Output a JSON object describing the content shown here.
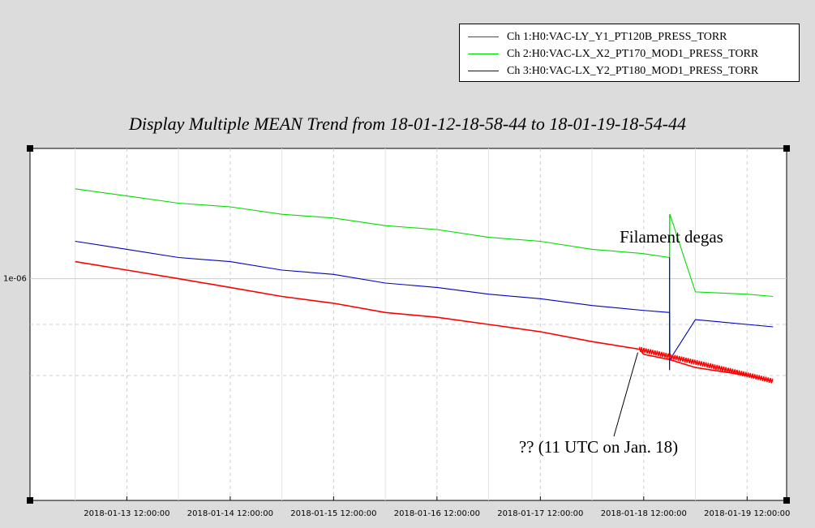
{
  "legend": {
    "items": [
      {
        "label": "Ch 1:H0:VAC-LY_Y1_PT120B_PRESS_TORR",
        "color": "#ff0000"
      },
      {
        "label": "Ch 2:H0:VAC-LX_X2_PT170_MOD1_PRESS_TORR",
        "color": "#00dd00"
      },
      {
        "label": "Ch 3:H0:VAC-LX_Y2_PT180_MOD1_PRESS_TORR",
        "color": "#0000c0"
      }
    ]
  },
  "chart_data": {
    "type": "line",
    "title": "Display Multiple MEAN Trend from 18-01-12-18-58-44 to 18-01-19-18-54-44",
    "xlabel": "",
    "ylabel": "",
    "xlim": [
      "2018-01-12 18:58:44",
      "2018-01-19 18:54:44"
    ],
    "ylim": [
      6e-07,
      1.35e-06
    ],
    "yscale": "log",
    "grid": true,
    "legend_position": "top-right",
    "x_tick_labels": [
      "2018-01-13 12:00:00",
      "2018-01-14 12:00:00",
      "2018-01-15 12:00:00",
      "2018-01-16 12:00:00",
      "2018-01-17 12:00:00",
      "2018-01-18 12:00:00",
      "2018-01-19 12:00:00"
    ],
    "y_tick_labels": [
      "1e-06"
    ],
    "series": [
      {
        "name": "Ch 1:H0:VAC-LY_Y1_PT120B_PRESS_TORR",
        "color": "#ff0000",
        "x": [
          "2018-01-13 00:00",
          "2018-01-13 12:00",
          "2018-01-14 00:00",
          "2018-01-14 12:00",
          "2018-01-15 00:00",
          "2018-01-15 12:00",
          "2018-01-16 00:00",
          "2018-01-16 12:00",
          "2018-01-17 00:00",
          "2018-01-17 12:00",
          "2018-01-18 00:00",
          "2018-01-18 11:00",
          "2018-01-18 12:00",
          "2018-01-18 18:00",
          "2018-01-19 00:00",
          "2018-01-19 12:00",
          "2018-01-19 18:00"
        ],
        "values": [
          1.04e-06,
          1.02e-06,
          1e-06,
          9.8e-07,
          9.6e-07,
          9.45e-07,
          9.25e-07,
          9.15e-07,
          9e-07,
          8.85e-07,
          8.65e-07,
          8.5e-07,
          8.4e-07,
          8.3e-07,
          8.15e-07,
          8e-07,
          7.9e-07
        ]
      },
      {
        "name": "Ch 2:H0:VAC-LX_X2_PT170_MOD1_PRESS_TORR",
        "color": "#00dd00",
        "x": [
          "2018-01-13 00:00",
          "2018-01-13 12:00",
          "2018-01-14 00:00",
          "2018-01-14 12:00",
          "2018-01-15 00:00",
          "2018-01-15 12:00",
          "2018-01-16 00:00",
          "2018-01-16 12:00",
          "2018-01-17 00:00",
          "2018-01-17 12:00",
          "2018-01-18 00:00",
          "2018-01-18 11:30",
          "2018-01-18 18:00",
          "2018-01-18 18:05",
          "2018-01-19 00:00",
          "2018-01-19 12:00",
          "2018-01-19 18:00"
        ],
        "values": [
          1.23e-06,
          1.21e-06,
          1.19e-06,
          1.18e-06,
          1.16e-06,
          1.15e-06,
          1.13e-06,
          1.12e-06,
          1.1e-06,
          1.09e-06,
          1.07e-06,
          1.06e-06,
          1.05e-06,
          1.16e-06,
          9.7e-07,
          9.65e-07,
          9.6e-07
        ]
      },
      {
        "name": "Ch 3:H0:VAC-LX_Y2_PT180_MOD1_PRESS_TORR",
        "color": "#0000c0",
        "x": [
          "2018-01-13 00:00",
          "2018-01-13 12:00",
          "2018-01-14 00:00",
          "2018-01-14 12:00",
          "2018-01-15 00:00",
          "2018-01-15 12:00",
          "2018-01-16 00:00",
          "2018-01-16 12:00",
          "2018-01-17 00:00",
          "2018-01-17 12:00",
          "2018-01-18 00:00",
          "2018-01-18 11:30",
          "2018-01-18 18:00",
          "2018-01-18 18:05",
          "2018-01-19 00:00",
          "2018-01-19 12:00",
          "2018-01-19 18:00"
        ],
        "values": [
          1.09e-06,
          1.07e-06,
          1.05e-06,
          1.04e-06,
          1.02e-06,
          1.01e-06,
          9.9e-07,
          9.8e-07,
          9.65e-07,
          9.55e-07,
          9.4e-07,
          9.3e-07,
          9.25e-07,
          8.3e-07,
          9.1e-07,
          9e-07,
          8.95e-07
        ]
      }
    ],
    "annotations": [
      {
        "text": "Filament degas",
        "x": "2018-01-18 18:00"
      },
      {
        "text": "?? (11 UTC on Jan. 18)",
        "x": "2018-01-18 11:00"
      }
    ]
  }
}
